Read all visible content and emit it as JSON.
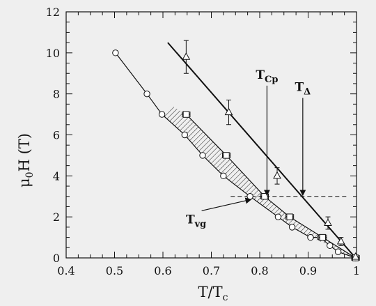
{
  "chart_data": {
    "type": "scatter",
    "title": "",
    "xlabel": "T/T_c",
    "ylabel": "μ0H (T)",
    "xlim": [
      0.4,
      1.0
    ],
    "ylim": [
      0,
      12
    ],
    "x_ticks": [
      0.4,
      0.5,
      0.6,
      0.7,
      0.8,
      0.9,
      1.0
    ],
    "x_tick_labels": [
      "0.4",
      "0.5",
      "0.6",
      "0.7",
      "0.8",
      "0.9",
      "1"
    ],
    "y_ticks": [
      0,
      2,
      4,
      6,
      8,
      10,
      12
    ],
    "y_tick_labels": [
      "0",
      "2",
      "4",
      "6",
      "8",
      "10",
      "12"
    ],
    "grid": false,
    "series": [
      {
        "marker": "circle",
        "points": [
          [
            0.502,
            10.0
          ],
          [
            0.567,
            8.0
          ],
          [
            0.598,
            7.0
          ],
          [
            0.645,
            6.0
          ],
          [
            0.682,
            5.0
          ],
          [
            0.725,
            4.0
          ],
          [
            0.78,
            3.0
          ],
          [
            0.838,
            2.0
          ],
          [
            0.867,
            1.5
          ],
          [
            0.905,
            1.0
          ],
          [
            0.925,
            1.0
          ],
          [
            0.945,
            0.6
          ],
          [
            0.962,
            0.3
          ],
          [
            0.998,
            0.0
          ]
        ]
      },
      {
        "marker": "square",
        "points": [
          [
            0.648,
            7.0
          ],
          [
            0.731,
            5.0
          ],
          [
            0.81,
            3.0
          ],
          [
            0.862,
            2.0
          ],
          [
            0.93,
            1.0
          ],
          [
            0.998,
            0.0
          ]
        ],
        "xerr": 0.008
      },
      {
        "marker": "triangle",
        "points": [
          [
            0.648,
            9.8
          ],
          [
            0.736,
            7.1
          ],
          [
            0.836,
            4.0
          ],
          [
            0.941,
            1.7
          ],
          [
            0.968,
            0.8
          ],
          [
            0.998,
            0.05
          ]
        ],
        "yerr": [
          0.8,
          0.6,
          0.4,
          0.3,
          0.2,
          0.05
        ]
      }
    ],
    "fit_lines": [
      {
        "style": "solid",
        "points": [
          [
            0.61,
            10.5
          ],
          [
            0.998,
            0.0
          ]
        ]
      }
    ],
    "reference_line": {
      "style": "dashed",
      "y": 3.0,
      "x_range": [
        0.74,
        0.98
      ]
    },
    "shaded_region": {
      "pattern": "hatched",
      "upper": [
        [
          0.62,
          7.4
        ],
        [
          0.648,
          7.0
        ],
        [
          0.731,
          5.0
        ],
        [
          0.81,
          3.0
        ],
        [
          0.862,
          2.0
        ],
        [
          0.93,
          1.0
        ],
        [
          0.998,
          0.0
        ]
      ],
      "lower": [
        [
          0.598,
          7.0
        ],
        [
          0.645,
          6.0
        ],
        [
          0.682,
          5.0
        ],
        [
          0.725,
          4.0
        ],
        [
          0.78,
          3.0
        ],
        [
          0.838,
          2.0
        ],
        [
          0.867,
          1.5
        ],
        [
          0.905,
          1.0
        ],
        [
          0.945,
          0.6
        ],
        [
          0.962,
          0.3
        ],
        [
          0.998,
          0.0
        ]
      ]
    },
    "annotations": [
      {
        "label": "T_Cp",
        "main": "T",
        "sub": "Cp",
        "arrow_tail": [
          0.815,
          8.4
        ],
        "arrow_head": [
          0.815,
          3.05
        ]
      },
      {
        "label": "T_Δ",
        "main": "T",
        "sub": "Δ",
        "arrow_tail": [
          0.889,
          7.8
        ],
        "arrow_head": [
          0.889,
          3.05
        ]
      },
      {
        "label": "T_vg",
        "main": "T",
        "sub": "vg",
        "arrow_tail": [
          0.68,
          2.3
        ],
        "arrow_head": [
          0.782,
          2.85
        ]
      }
    ]
  }
}
